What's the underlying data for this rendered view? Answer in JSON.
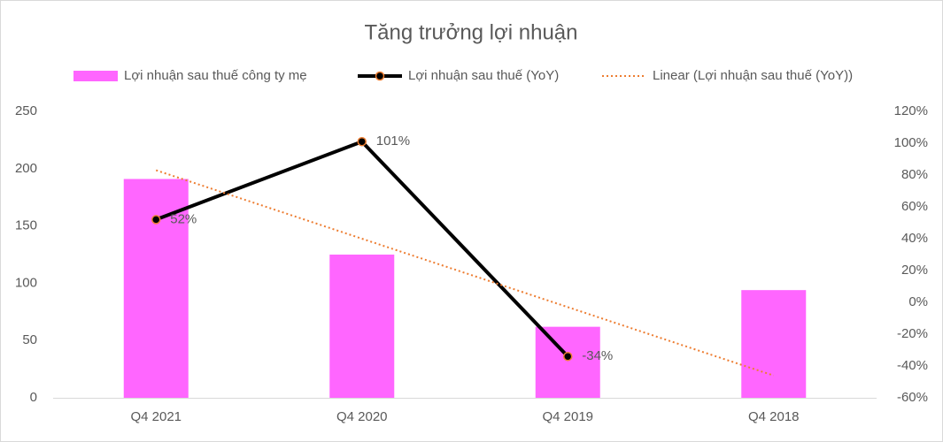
{
  "chart_data": {
    "type": "combo",
    "title": "Tăng trưởng lợi nhuận",
    "categories": [
      "Q4 2021",
      "Q4 2020",
      "Q4 2019",
      "Q4 2018"
    ],
    "series": [
      {
        "name": "Lợi nhuận sau thuế công ty mẹ",
        "type": "bar",
        "color": "#ff66ff",
        "values": [
          191,
          125,
          62,
          94
        ]
      },
      {
        "name": "Lợi nhuận sau thuế (YoY)",
        "type": "line",
        "axis": "y2",
        "color": "#000000",
        "marker_edge_color": "#ed7d31",
        "values": [
          52,
          101,
          -34,
          null
        ],
        "value_labels": [
          "52%",
          "101%",
          "-34%",
          null
        ]
      },
      {
        "name": "Linear (Lợi nhuận sau thuế (YoY))",
        "type": "trendline",
        "axis": "y2",
        "color": "#ed7d31",
        "values": [
          83,
          40,
          -3,
          -46
        ]
      }
    ],
    "ylim": [
      0,
      250
    ],
    "yticks": [
      0,
      50,
      100,
      150,
      200,
      250
    ],
    "y2lim": [
      -60,
      120
    ],
    "y2ticks": [
      {
        "value": -60,
        "label": "-60%"
      },
      {
        "value": -40,
        "label": "-40%"
      },
      {
        "value": -20,
        "label": "-20%"
      },
      {
        "value": 0,
        "label": "0%"
      },
      {
        "value": 20,
        "label": "20%"
      },
      {
        "value": 40,
        "label": "40%"
      },
      {
        "value": 60,
        "label": "60%"
      },
      {
        "value": 80,
        "label": "80%"
      },
      {
        "value": 100,
        "label": "100%"
      },
      {
        "value": 120,
        "label": "120%"
      }
    ],
    "grid": false,
    "legend": "top"
  }
}
